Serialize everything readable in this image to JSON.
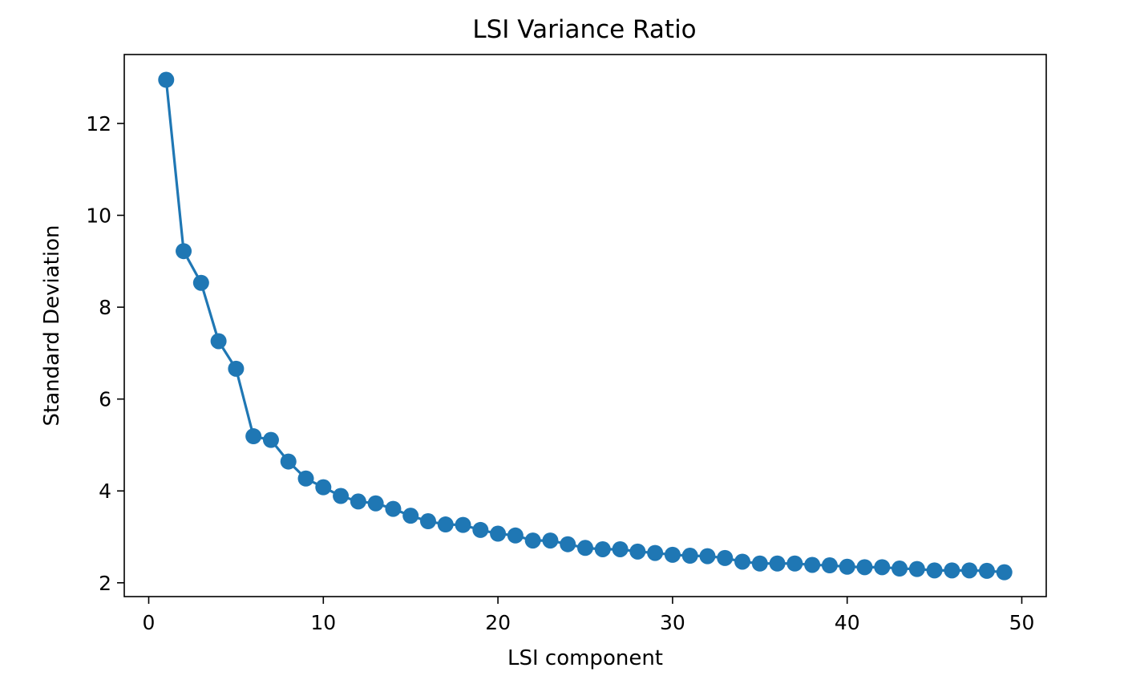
{
  "chart_data": {
    "type": "line",
    "title": "LSI Variance Ratio",
    "xlabel": "LSI component",
    "ylabel": "Standard Deviation",
    "xlim": [
      -1.4,
      51.4
    ],
    "ylim": [
      1.7,
      13.5
    ],
    "xticks": [
      0,
      10,
      20,
      30,
      40,
      50
    ],
    "yticks": [
      2,
      4,
      6,
      8,
      10,
      12
    ],
    "grid": false,
    "legend": "none",
    "markers": true,
    "color": "#1f77b4",
    "series": [
      {
        "x": [
          1,
          2,
          3,
          4,
          5,
          6,
          7,
          8,
          9,
          10,
          11,
          12,
          13,
          14,
          15,
          16,
          17,
          18,
          19,
          20,
          21,
          22,
          23,
          24,
          25,
          26,
          27,
          28,
          29,
          30,
          31,
          32,
          33,
          34,
          35,
          36,
          37,
          38,
          39,
          40,
          41,
          42,
          43,
          44,
          45,
          46,
          47,
          48,
          49
        ],
        "values": [
          12.95,
          9.22,
          8.53,
          7.26,
          6.66,
          5.19,
          5.11,
          4.64,
          4.27,
          4.08,
          3.89,
          3.77,
          3.73,
          3.61,
          3.46,
          3.34,
          3.27,
          3.26,
          3.15,
          3.07,
          3.03,
          2.92,
          2.92,
          2.84,
          2.76,
          2.73,
          2.73,
          2.68,
          2.65,
          2.61,
          2.59,
          2.58,
          2.54,
          2.46,
          2.42,
          2.42,
          2.42,
          2.39,
          2.38,
          2.35,
          2.34,
          2.34,
          2.31,
          2.3,
          2.27,
          2.27,
          2.27,
          2.26,
          2.23
        ]
      }
    ]
  }
}
